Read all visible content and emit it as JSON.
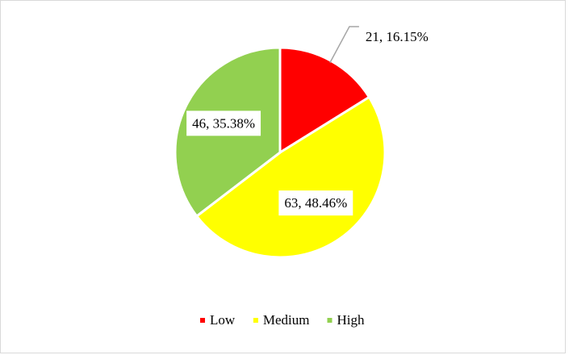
{
  "chart_data": {
    "type": "pie",
    "categories": [
      "Low",
      "Medium",
      "High"
    ],
    "values": [
      21,
      63,
      46
    ],
    "value_labels": [
      "21, 16.15%",
      "63, 48.46%",
      "46, 35.38%"
    ],
    "colors": [
      "#ff0000",
      "#ffff00",
      "#92d050"
    ],
    "legend": "bottom"
  }
}
